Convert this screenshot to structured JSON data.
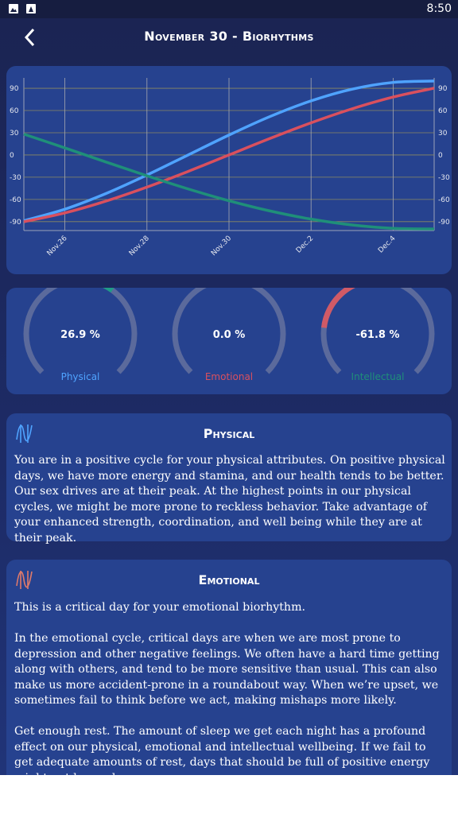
{
  "status_bar": {
    "time": "8:50"
  },
  "header": {
    "title": "November 30 - Biorhythms"
  },
  "chart_data": {
    "type": "line",
    "categories": [
      null,
      "Nov.26",
      null,
      "Nov.28",
      null,
      "Nov.30",
      null,
      "Dec.2",
      null,
      "Dec.4",
      null
    ],
    "series": [
      {
        "name": "Physical",
        "color": "#4fa3ff",
        "values": [
          -88.8,
          -73.2,
          -52.1,
          -27.1,
          -0.1,
          26.9,
          51.9,
          73.0,
          88.8,
          97.9,
          99.8
        ]
      },
      {
        "name": "Emotional",
        "color": "#d9505e",
        "values": [
          -90.1,
          -78.2,
          -62.3,
          -43.4,
          -22.3,
          0,
          22.3,
          43.4,
          62.3,
          78.2,
          90.1
        ]
      },
      {
        "name": "Intellectual",
        "color": "#1f8f79",
        "values": [
          28.1,
          9.5,
          -9.5,
          -28.1,
          -45.8,
          -61.8,
          -75.6,
          -86.6,
          -94.5,
          -99.0,
          -99.9
        ]
      }
    ],
    "ylim": [
      -102,
      104
    ],
    "yticks": [
      -90,
      -60,
      -30,
      0,
      30,
      60,
      90
    ],
    "grid": true
  },
  "gauges": [
    {
      "name": "Physical",
      "value": 26.9,
      "value_label": "26.9 %",
      "color": "#1f9c86",
      "label_color": "#4fa3ff"
    },
    {
      "name": "Emotional",
      "value": 0.0,
      "value_label": "0.0 %",
      "color": "#d9505e",
      "label_color": "#d9505e"
    },
    {
      "name": "Intellectual",
      "value": -61.8,
      "value_label": "-61.8 %",
      "color": "#d05a66",
      "label_color": "#1f8f79"
    }
  ],
  "cards": [
    {
      "title": "Physical",
      "paragraphs": [
        "You are in a positive cycle for your physical attributes. On positive physical days, we have more energy and stamina, and our health tends to be better. Our sex drives are at their peak. At the highest points in our physical cycles, we might be more prone to reckless behavior. Take advantage of your enhanced strength, coordination, and well being while they are at their peak."
      ]
    },
    {
      "title": "Emotional",
      "paragraphs": [
        "This is a critical day for your emotional biorhythm.",
        "In the emotional cycle, critical days are when we are most prone to depression and other negative feelings. We often have a hard time getting along with others, and tend to be more sensitive than usual. This can also make us more accident-prone in a roundabout way. When we’re upset, we sometimes fail to think before we act, making mishaps more likely.",
        "Get enough rest. The amount of sleep we get each night has a profound effect on our physical, emotional and intellectual wellbeing. If we fail to get adequate amounts of rest, days that should be full of positive energy might not be, and"
      ]
    }
  ]
}
